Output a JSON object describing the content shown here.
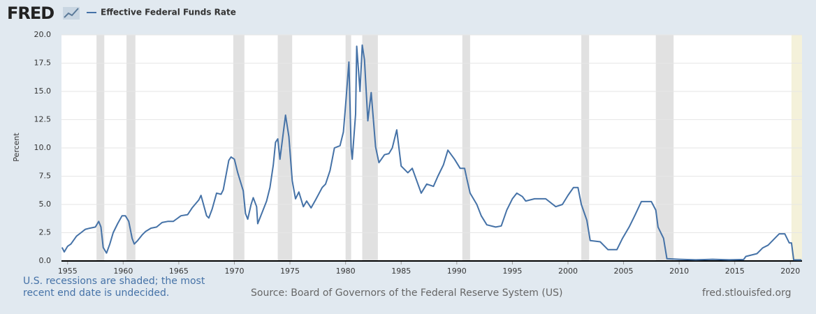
{
  "logo": "FRED",
  "chart_data": {
    "type": "line",
    "ylabel": "Percent",
    "series": [
      {
        "name": "Effective Federal Funds Rate",
        "color": "#4572a7",
        "values": [
          1.2,
          0.8,
          1.3,
          1.5,
          2.2,
          2.5,
          2.8,
          2.9,
          3.0,
          3.5,
          3.0,
          1.2,
          0.7,
          1.5,
          2.5,
          3.3,
          4.0,
          4.0,
          3.5,
          2.0,
          1.5,
          1.8,
          2.3,
          2.6,
          2.9,
          3.0,
          3.4,
          3.5,
          3.5,
          4.0,
          4.1,
          4.7,
          5.4,
          5.8,
          4.0,
          3.8,
          4.6,
          6.0,
          5.9,
          6.3,
          8.9,
          9.2,
          9.0,
          7.8,
          6.2,
          4.2,
          3.7,
          5.0,
          5.6,
          4.8,
          3.3,
          4.3,
          5.3,
          6.5,
          8.5,
          10.5,
          10.8,
          9.0,
          12.9,
          11.0,
          7.1,
          5.5,
          6.1,
          4.8,
          5.3,
          4.7,
          5.4,
          6.5,
          6.8,
          8.0,
          10.0,
          10.2,
          11.4,
          13.8,
          17.6,
          10.0,
          9.0,
          13.0,
          19.0,
          15.0,
          19.1,
          17.8,
          12.4,
          14.9,
          10.1,
          8.7,
          9.4,
          9.5,
          10.0,
          11.6,
          8.4,
          7.8,
          8.2,
          6.0,
          6.8,
          6.6,
          7.5,
          8.5,
          9.8,
          9.0,
          8.2,
          8.2,
          7.3,
          6.0,
          5.0,
          4.0,
          3.2,
          3.0,
          3.1,
          4.5,
          5.5,
          6.0,
          5.7,
          5.3,
          5.5,
          5.5,
          4.8,
          5.0,
          5.8,
          6.5,
          6.5,
          5.0,
          3.6,
          1.8,
          1.7,
          1.0,
          1.0,
          2.0,
          3.0,
          4.0,
          5.25,
          5.25,
          4.5,
          3.0,
          2.0,
          0.2,
          0.15,
          0.1,
          0.15,
          0.1,
          0.13,
          0.4,
          0.65,
          1.15,
          1.4,
          2.0,
          2.4,
          2.4,
          1.6,
          1.6,
          0.1,
          0.09
        ]
      }
    ],
    "x": [
      1954.5,
      1954.7,
      1955.0,
      1955.3,
      1955.8,
      1956.2,
      1956.6,
      1957.0,
      1957.5,
      1957.8,
      1958.0,
      1958.2,
      1958.5,
      1958.8,
      1959.1,
      1959.5,
      1959.9,
      1960.2,
      1960.5,
      1960.8,
      1961.0,
      1961.3,
      1961.7,
      1962.0,
      1962.5,
      1963.0,
      1963.5,
      1964.0,
      1964.5,
      1965.2,
      1965.8,
      1966.2,
      1966.8,
      1967.0,
      1967.5,
      1967.7,
      1968.0,
      1968.4,
      1968.8,
      1969.0,
      1969.5,
      1969.7,
      1970.0,
      1970.3,
      1970.8,
      1971.0,
      1971.2,
      1971.5,
      1971.7,
      1972.0,
      1972.1,
      1972.5,
      1972.9,
      1973.2,
      1973.5,
      1973.7,
      1973.9,
      1974.1,
      1974.6,
      1974.9,
      1975.2,
      1975.5,
      1975.8,
      1976.2,
      1976.5,
      1976.9,
      1977.3,
      1977.9,
      1978.2,
      1978.6,
      1979.0,
      1979.5,
      1979.8,
      1980.0,
      1980.3,
      1980.5,
      1980.6,
      1980.9,
      1981.0,
      1981.3,
      1981.5,
      1981.7,
      1982.0,
      1982.3,
      1982.7,
      1983.0,
      1983.5,
      1983.9,
      1984.2,
      1984.6,
      1985.0,
      1985.6,
      1986.0,
      1986.8,
      1987.3,
      1987.9,
      1988.3,
      1988.8,
      1989.2,
      1989.8,
      1990.3,
      1990.7,
      1990.9,
      1991.2,
      1991.8,
      1992.2,
      1992.7,
      1993.5,
      1994.0,
      1994.5,
      1995.0,
      1995.4,
      1995.9,
      1996.2,
      1997.0,
      1998.0,
      1998.9,
      1999.5,
      2000.0,
      2000.5,
      2000.9,
      2001.2,
      2001.7,
      2002.0,
      2002.9,
      2003.6,
      2004.4,
      2004.9,
      2005.5,
      2006.0,
      2006.6,
      2007.5,
      2007.9,
      2008.1,
      2008.6,
      2008.9,
      2010.0,
      2011.5,
      2013.0,
      2014.5,
      2015.8,
      2016.0,
      2017.0,
      2017.5,
      2018.0,
      2018.6,
      2019.0,
      2019.5,
      2019.9,
      2020.1,
      2020.3,
      2021.0
    ],
    "xlim": [
      1954.45,
      2021.05
    ],
    "ylim": [
      0,
      20
    ],
    "xticks": [
      1955,
      1960,
      1965,
      1970,
      1975,
      1980,
      1985,
      1990,
      1995,
      2000,
      2005,
      2010,
      2015,
      2020
    ],
    "yticks": [
      {
        "value": 0,
        "label": "0.0"
      },
      2.5,
      {
        "value": 5,
        "label": "5.0"
      },
      7.5,
      {
        "value": 10,
        "label": "10.0"
      },
      12.5,
      {
        "value": 15,
        "label": "15.0"
      },
      17.5,
      {
        "value": 20,
        "label": "20.0"
      }
    ],
    "grid": true,
    "recessions": [
      [
        1957.6,
        1958.3
      ],
      [
        1960.3,
        1961.1
      ],
      [
        1969.9,
        1970.9
      ],
      [
        1973.9,
        1975.2
      ],
      [
        1980.0,
        1980.5
      ],
      [
        1981.5,
        1982.9
      ],
      [
        1990.5,
        1991.2
      ],
      [
        2001.2,
        2001.9
      ],
      [
        2007.9,
        2009.5
      ]
    ],
    "recession_color": "#e1e1e1",
    "undecided_recession": [
      2020.1,
      2021.05
    ],
    "undecided_color": "#f4f1da",
    "note": "U.S. recessions are shaded; the most recent end date is undecided.",
    "source": "Source: Board of Governors of the Federal Reserve System (US)",
    "site": "fred.stlouisfed.org"
  }
}
